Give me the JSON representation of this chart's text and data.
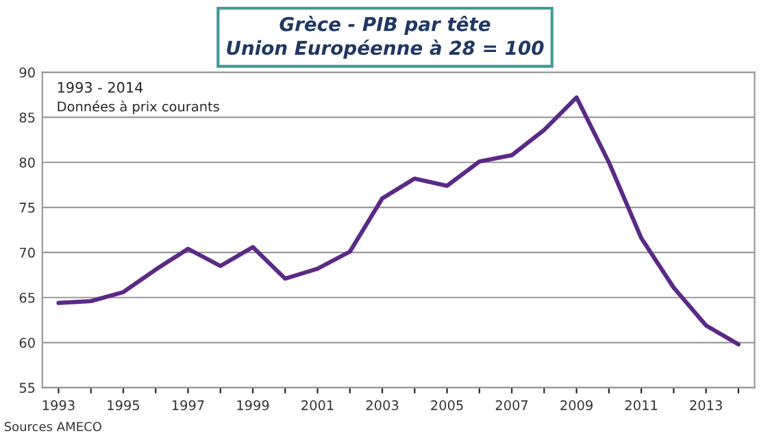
{
  "chart_data": {
    "type": "line",
    "title": "Grèce - PIB par tête\nUnion Européenne à 28 = 100",
    "categories": [
      "1993",
      null,
      "1995",
      null,
      "1997",
      null,
      "1999",
      null,
      "2001",
      null,
      "2003",
      null,
      "2005",
      null,
      "2007",
      null,
      "2009",
      null,
      "2011",
      null,
      "2013",
      null
    ],
    "series": [
      {
        "color": "#5b2a86",
        "values": [
          64.4,
          64.6,
          65.6,
          68.1,
          70.4,
          68.5,
          70.6,
          67.1,
          68.2,
          70.1,
          76.0,
          78.2,
          77.4,
          80.1,
          80.8,
          83.6,
          87.2,
          80.0,
          71.6,
          66.1,
          61.9,
          59.8
        ]
      }
    ],
    "ylim": [
      55,
      90
    ],
    "yticks": [
      55,
      60,
      65,
      70,
      75,
      80,
      85,
      90
    ],
    "grid": "y",
    "legend": false,
    "marker": "none",
    "line_style": "solid",
    "annotations": [
      "1993 - 2014",
      "Données à prix courants",
      "Sources AMECO"
    ]
  }
}
